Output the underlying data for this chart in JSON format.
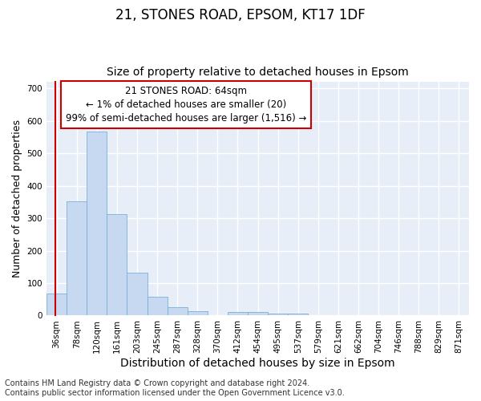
{
  "title1": "21, STONES ROAD, EPSOM, KT17 1DF",
  "title2": "Size of property relative to detached houses in Epsom",
  "xlabel": "Distribution of detached houses by size in Epsom",
  "ylabel": "Number of detached properties",
  "categories": [
    "36sqm",
    "78sqm",
    "120sqm",
    "161sqm",
    "203sqm",
    "245sqm",
    "287sqm",
    "328sqm",
    "370sqm",
    "412sqm",
    "454sqm",
    "495sqm",
    "537sqm",
    "579sqm",
    "621sqm",
    "662sqm",
    "704sqm",
    "746sqm",
    "788sqm",
    "829sqm",
    "871sqm"
  ],
  "values": [
    68,
    352,
    567,
    312,
    132,
    58,
    27,
    13,
    0,
    10,
    10,
    5,
    5,
    0,
    0,
    0,
    0,
    0,
    0,
    0,
    0
  ],
  "bar_color": "#c6d9f0",
  "bar_edge_color": "#7ab0d8",
  "annotation_box_text": "21 STONES ROAD: 64sqm\n← 1% of detached houses are smaller (20)\n99% of semi-detached houses are larger (1,516) →",
  "annotation_box_color": "#ffffff",
  "annotation_box_edge_color": "#cc0000",
  "annotation_line_color": "#cc0000",
  "ylim": [
    0,
    720
  ],
  "yticks": [
    0,
    100,
    200,
    300,
    400,
    500,
    600,
    700
  ],
  "background_color": "#e8eef8",
  "grid_color": "#ffffff",
  "footnote": "Contains HM Land Registry data © Crown copyright and database right 2024.\nContains public sector information licensed under the Open Government Licence v3.0.",
  "title1_fontsize": 12,
  "title2_fontsize": 10,
  "xlabel_fontsize": 10,
  "ylabel_fontsize": 9,
  "tick_fontsize": 7.5,
  "annotation_fontsize": 8.5,
  "footnote_fontsize": 7
}
